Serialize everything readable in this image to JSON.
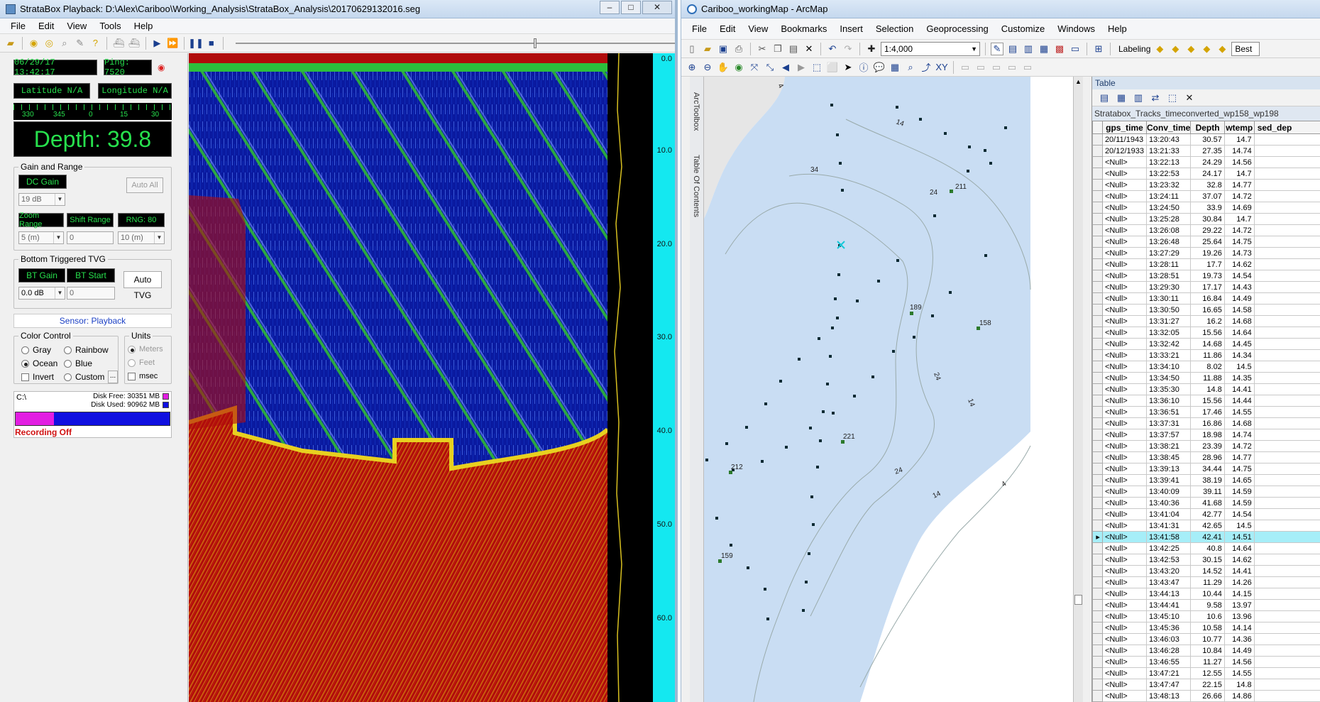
{
  "left": {
    "title": "StrataBox Playback: D:\\Alex\\Cariboo\\Working_Analysis\\StrataBox_Analysis\\20170629132016.seg",
    "menu": [
      "File",
      "Edit",
      "View",
      "Tools",
      "Help"
    ],
    "datetime": "06/29/17 13:42:17",
    "ping": "Ping: 7520",
    "latitude": "Latitude N/A",
    "longitude": "Longitude N/A",
    "compass_ticks": [
      "330",
      "345",
      "0",
      "15",
      "30"
    ],
    "depth": "Depth: 39.8",
    "gain_group": "Gain and Range",
    "dc_gain": "DC Gain",
    "auto_all": "Auto All",
    "dc_gain_value": "19 dB",
    "zoom_range": "Zoom Range",
    "shift_range": "Shift Range",
    "rng": "RNG: 80",
    "zoom_value": "5 (m)",
    "shift_value": "0",
    "rng_value": "10 (m)",
    "tvg_group": "Bottom Triggered TVG",
    "bt_gain": "BT Gain",
    "bt_start": "BT Start",
    "auto_tvg": "Auto TVG",
    "bt_gain_value": "0.0 dB",
    "bt_start_value": "0",
    "sensor": "Sensor: Playback",
    "color_group": "Color Control",
    "color_options": [
      "Gray",
      "Rainbow",
      "Ocean",
      "Blue",
      "Invert",
      "Custom"
    ],
    "custom_btn": "...",
    "units_group": "Units",
    "units_options": [
      "Meters",
      "Feet",
      "msec"
    ],
    "drive": "C:\\",
    "disk_free": "Disk Free: 30351 MB",
    "disk_used": "Disk Used: 90962 MB",
    "recording": "Recording Off",
    "scale_ticks": [
      "0.0",
      "10.0",
      "20.0",
      "30.0",
      "40.0",
      "50.0",
      "60.0"
    ]
  },
  "right": {
    "title": "Cariboo_workingMap - ArcMap",
    "menu": [
      "File",
      "Edit",
      "View",
      "Bookmarks",
      "Insert",
      "Selection",
      "Geoprocessing",
      "Customize",
      "Windows",
      "Help"
    ],
    "scale": "1:4,000",
    "labeling": "Labeling",
    "best": "Best",
    "vtabs": [
      "ArcToolbox",
      "Table Of Contents"
    ],
    "map_labels": [
      "14",
      "34",
      "211",
      "24",
      "189",
      "158",
      "24",
      "14",
      "221",
      "24",
      "212",
      "14",
      "4",
      "159",
      "4"
    ],
    "table": {
      "panel_title": "Table",
      "name": "Stratabox_Tracks_timeconverted_wp158_wp198",
      "columns": [
        "gps_time",
        "Conv_time",
        "Depth",
        "wtemp",
        "sed_dep"
      ],
      "rows": [
        [
          "20/11/1943",
          "13:20:43",
          "30.57",
          "14.7"
        ],
        [
          "20/12/1933",
          "13:21:33",
          "27.35",
          "14.74"
        ],
        [
          "<Null>",
          "13:22:13",
          "24.29",
          "14.56"
        ],
        [
          "<Null>",
          "13:22:53",
          "24.17",
          "14.7"
        ],
        [
          "<Null>",
          "13:23:32",
          "32.8",
          "14.77"
        ],
        [
          "<Null>",
          "13:24:11",
          "37.07",
          "14.72"
        ],
        [
          "<Null>",
          "13:24:50",
          "33.9",
          "14.69"
        ],
        [
          "<Null>",
          "13:25:28",
          "30.84",
          "14.7"
        ],
        [
          "<Null>",
          "13:26:08",
          "29.22",
          "14.72"
        ],
        [
          "<Null>",
          "13:26:48",
          "25.64",
          "14.75"
        ],
        [
          "<Null>",
          "13:27:29",
          "19.26",
          "14.73"
        ],
        [
          "<Null>",
          "13:28:11",
          "17.7",
          "14.62"
        ],
        [
          "<Null>",
          "13:28:51",
          "19.73",
          "14.54"
        ],
        [
          "<Null>",
          "13:29:30",
          "17.17",
          "14.43"
        ],
        [
          "<Null>",
          "13:30:11",
          "16.84",
          "14.49"
        ],
        [
          "<Null>",
          "13:30:50",
          "16.65",
          "14.58"
        ],
        [
          "<Null>",
          "13:31:27",
          "16.2",
          "14.68"
        ],
        [
          "<Null>",
          "13:32:05",
          "15.56",
          "14.64"
        ],
        [
          "<Null>",
          "13:32:42",
          "14.68",
          "14.45"
        ],
        [
          "<Null>",
          "13:33:21",
          "11.86",
          "14.34"
        ],
        [
          "<Null>",
          "13:34:10",
          "8.02",
          "14.5"
        ],
        [
          "<Null>",
          "13:34:50",
          "11.88",
          "14.35"
        ],
        [
          "<Null>",
          "13:35:30",
          "14.8",
          "14.41"
        ],
        [
          "<Null>",
          "13:36:10",
          "15.56",
          "14.44"
        ],
        [
          "<Null>",
          "13:36:51",
          "17.46",
          "14.55"
        ],
        [
          "<Null>",
          "13:37:31",
          "16.86",
          "14.68"
        ],
        [
          "<Null>",
          "13:37:57",
          "18.98",
          "14.74"
        ],
        [
          "<Null>",
          "13:38:21",
          "23.39",
          "14.72"
        ],
        [
          "<Null>",
          "13:38:45",
          "28.96",
          "14.77"
        ],
        [
          "<Null>",
          "13:39:13",
          "34.44",
          "14.75"
        ],
        [
          "<Null>",
          "13:39:41",
          "38.19",
          "14.65"
        ],
        [
          "<Null>",
          "13:40:09",
          "39.11",
          "14.59"
        ],
        [
          "<Null>",
          "13:40:36",
          "41.68",
          "14.59"
        ],
        [
          "<Null>",
          "13:41:04",
          "42.77",
          "14.54"
        ],
        [
          "<Null>",
          "13:41:31",
          "42.65",
          "14.5"
        ],
        [
          "<Null>",
          "13:41:58",
          "42.41",
          "14.51"
        ],
        [
          "<Null>",
          "13:42:25",
          "40.8",
          "14.64"
        ],
        [
          "<Null>",
          "13:42:53",
          "30.15",
          "14.62"
        ],
        [
          "<Null>",
          "13:43:20",
          "14.52",
          "14.41"
        ],
        [
          "<Null>",
          "13:43:47",
          "11.29",
          "14.26"
        ],
        [
          "<Null>",
          "13:44:13",
          "10.44",
          "14.15"
        ],
        [
          "<Null>",
          "13:44:41",
          "9.58",
          "13.97"
        ],
        [
          "<Null>",
          "13:45:10",
          "10.6",
          "13.96"
        ],
        [
          "<Null>",
          "13:45:36",
          "10.58",
          "14.14"
        ],
        [
          "<Null>",
          "13:46:03",
          "10.77",
          "14.36"
        ],
        [
          "<Null>",
          "13:46:28",
          "10.84",
          "14.49"
        ],
        [
          "<Null>",
          "13:46:55",
          "11.27",
          "14.56"
        ],
        [
          "<Null>",
          "13:47:21",
          "12.55",
          "14.55"
        ],
        [
          "<Null>",
          "13:47:47",
          "22.15",
          "14.8"
        ],
        [
          "<Null>",
          "13:48:13",
          "26.66",
          "14.86"
        ]
      ],
      "current_row": 35
    }
  },
  "colors": {
    "lcd_green": "#27e04d",
    "cyan": "#14e8f0",
    "echo_red": "#b00b0b",
    "echo_blue": "#0b1ea0",
    "map_water": "#c9ddf3"
  }
}
